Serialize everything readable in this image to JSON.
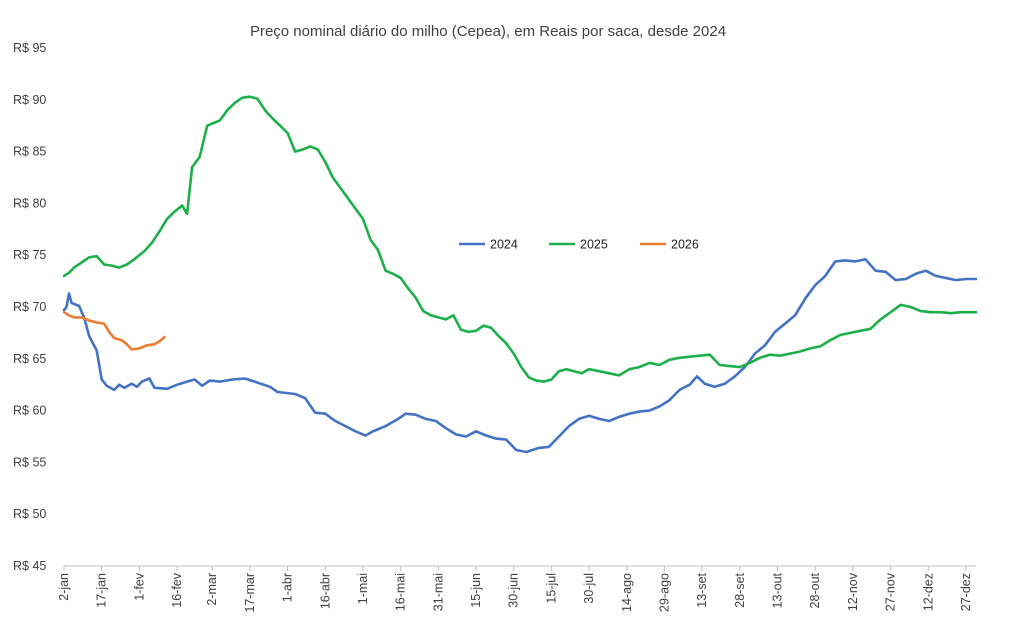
{
  "chart_data": {
    "type": "line",
    "title": "Preço nominal diário do milho (Cepea), em Reais por saca, desde 2024",
    "ylim": [
      45,
      95
    ],
    "y_ticks": [
      {
        "value": 95,
        "label": "R$ 95"
      },
      {
        "value": 90,
        "label": "R$ 90"
      },
      {
        "value": 85,
        "label": "R$ 85"
      },
      {
        "value": 80,
        "label": "R$ 80"
      },
      {
        "value": 75,
        "label": "R$ 75"
      },
      {
        "value": 70,
        "label": "R$ 70"
      },
      {
        "value": 65,
        "label": "R$ 65"
      },
      {
        "value": 60,
        "label": "R$ 60"
      },
      {
        "value": 55,
        "label": "R$ 55"
      },
      {
        "value": 50,
        "label": "R$ 50"
      },
      {
        "value": 45,
        "label": "R$ 45"
      }
    ],
    "x_ticks": [
      "2-jan",
      "17-jan",
      "1-fev",
      "16-fev",
      "2-mar",
      "17-mar",
      "1-abr",
      "16-abr",
      "1-mai",
      "16-mai",
      "31-mai",
      "15-jun",
      "30-jun",
      "15-jul",
      "30-jul",
      "14-ago",
      "29-ago",
      "13-set",
      "28-set",
      "13-out",
      "28-out",
      "12-nov",
      "27-nov",
      "12-dez",
      "27-dez"
    ],
    "legend_position": "center-right",
    "grid": false,
    "series": [
      {
        "name": "2024",
        "color": "#4472C4",
        "points": [
          [
            "2-jan",
            69.7
          ],
          [
            "3-jan",
            70.0
          ],
          [
            "4-jan",
            71.3
          ],
          [
            "5-jan",
            70.4
          ],
          [
            "8-jan",
            70.1
          ],
          [
            "10-jan",
            69.0
          ],
          [
            "12-jan",
            67.2
          ],
          [
            "15-jan",
            65.8
          ],
          [
            "17-jan",
            63.0
          ],
          [
            "19-jan",
            62.4
          ],
          [
            "22-jan",
            62.0
          ],
          [
            "24-jan",
            62.5
          ],
          [
            "26-jan",
            62.2
          ],
          [
            "29-jan",
            62.6
          ],
          [
            "31-jan",
            62.3
          ],
          [
            "2-fev",
            62.8
          ],
          [
            "5-fev",
            63.1
          ],
          [
            "7-fev",
            62.2
          ],
          [
            "12-fev",
            62.1
          ],
          [
            "16-fev",
            62.5
          ],
          [
            "20-fev",
            62.8
          ],
          [
            "23-fev",
            63.0
          ],
          [
            "26-fev",
            62.4
          ],
          [
            "29-fev",
            62.9
          ],
          [
            "5-mar",
            62.8
          ],
          [
            "10-mar",
            63.0
          ],
          [
            "15-mar",
            63.1
          ],
          [
            "20-mar",
            62.7
          ],
          [
            "25-mar",
            62.3
          ],
          [
            "28-mar",
            61.8
          ],
          [
            "4-abr",
            61.6
          ],
          [
            "8-abr",
            61.2
          ],
          [
            "12-abr",
            59.8
          ],
          [
            "16-abr",
            59.7
          ],
          [
            "20-abr",
            59.0
          ],
          [
            "24-abr",
            58.5
          ],
          [
            "28-abr",
            58.0
          ],
          [
            "2-mai",
            57.6
          ],
          [
            "5-mai",
            58.0
          ],
          [
            "10-mai",
            58.5
          ],
          [
            "15-mai",
            59.2
          ],
          [
            "18-mai",
            59.7
          ],
          [
            "22-mai",
            59.6
          ],
          [
            "26-mai",
            59.2
          ],
          [
            "30-mai",
            59.0
          ],
          [
            "3-jun",
            58.3
          ],
          [
            "7-jun",
            57.7
          ],
          [
            "11-jun",
            57.5
          ],
          [
            "15-jun",
            58.0
          ],
          [
            "19-jun",
            57.6
          ],
          [
            "23-jun",
            57.3
          ],
          [
            "27-jun",
            57.2
          ],
          [
            "1-jul",
            56.2
          ],
          [
            "5-jul",
            56.0
          ],
          [
            "10-jul",
            56.4
          ],
          [
            "14-jul",
            56.5
          ],
          [
            "18-jul",
            57.5
          ],
          [
            "22-jul",
            58.5
          ],
          [
            "26-jul",
            59.2
          ],
          [
            "30-jul",
            59.5
          ],
          [
            "3-ago",
            59.2
          ],
          [
            "7-ago",
            59.0
          ],
          [
            "11-ago",
            59.4
          ],
          [
            "15-ago",
            59.7
          ],
          [
            "19-ago",
            59.9
          ],
          [
            "23-ago",
            60.0
          ],
          [
            "27-ago",
            60.4
          ],
          [
            "31-ago",
            61.0
          ],
          [
            "4-set",
            62.0
          ],
          [
            "8-set",
            62.5
          ],
          [
            "11-set",
            63.3
          ],
          [
            "14-set",
            62.6
          ],
          [
            "18-set",
            62.3
          ],
          [
            "22-set",
            62.6
          ],
          [
            "26-set",
            63.3
          ],
          [
            "30-set",
            64.2
          ],
          [
            "4-out",
            65.5
          ],
          [
            "8-out",
            66.3
          ],
          [
            "12-out",
            67.6
          ],
          [
            "16-out",
            68.4
          ],
          [
            "20-out",
            69.2
          ],
          [
            "24-out",
            70.8
          ],
          [
            "28-out",
            72.1
          ],
          [
            "1-nov",
            73.0
          ],
          [
            "5-nov",
            74.4
          ],
          [
            "9-nov",
            74.5
          ],
          [
            "13-nov",
            74.4
          ],
          [
            "17-nov",
            74.6
          ],
          [
            "21-nov",
            73.5
          ],
          [
            "25-nov",
            73.4
          ],
          [
            "29-nov",
            72.6
          ],
          [
            "3-dez",
            72.7
          ],
          [
            "7-dez",
            73.2
          ],
          [
            "11-dez",
            73.5
          ],
          [
            "15-dez",
            73.0
          ],
          [
            "19-dez",
            72.8
          ],
          [
            "23-dez",
            72.6
          ],
          [
            "27-dez",
            72.7
          ],
          [
            "31-dez",
            72.7
          ]
        ]
      },
      {
        "name": "2025",
        "color": "#1DB04A",
        "points": [
          [
            "2-jan",
            73.0
          ],
          [
            "4-jan",
            73.3
          ],
          [
            "6-jan",
            73.8
          ],
          [
            "9-jan",
            74.3
          ],
          [
            "12-jan",
            74.8
          ],
          [
            "15-jan",
            74.9
          ],
          [
            "18-jan",
            74.1
          ],
          [
            "21-jan",
            74.0
          ],
          [
            "24-jan",
            73.8
          ],
          [
            "27-jan",
            74.1
          ],
          [
            "30-jan",
            74.6
          ],
          [
            "3-fev",
            75.4
          ],
          [
            "6-fev",
            76.2
          ],
          [
            "9-fev",
            77.3
          ],
          [
            "12-fev",
            78.5
          ],
          [
            "15-fev",
            79.2
          ],
          [
            "18-fev",
            79.8
          ],
          [
            "20-fev",
            79.0
          ],
          [
            "22-fev",
            83.5
          ],
          [
            "25-fev",
            84.5
          ],
          [
            "28-fev",
            87.5
          ],
          [
            "2-mar",
            87.7
          ],
          [
            "5-mar",
            88.0
          ],
          [
            "8-mar",
            89.0
          ],
          [
            "11-mar",
            89.7
          ],
          [
            "14-mar",
            90.2
          ],
          [
            "17-mar",
            90.3
          ],
          [
            "20-mar",
            90.1
          ],
          [
            "23-mar",
            89.0
          ],
          [
            "26-mar",
            88.2
          ],
          [
            "29-mar",
            87.5
          ],
          [
            "1-abr",
            86.8
          ],
          [
            "4-abr",
            85.0
          ],
          [
            "7-abr",
            85.2
          ],
          [
            "10-abr",
            85.5
          ],
          [
            "13-abr",
            85.2
          ],
          [
            "16-abr",
            84.0
          ],
          [
            "19-abr",
            82.5
          ],
          [
            "22-abr",
            81.5
          ],
          [
            "25-abr",
            80.5
          ],
          [
            "28-abr",
            79.5
          ],
          [
            "1-mai",
            78.5
          ],
          [
            "4-mai",
            76.5
          ],
          [
            "7-mai",
            75.5
          ],
          [
            "10-mai",
            73.5
          ],
          [
            "13-mai",
            73.2
          ],
          [
            "16-mai",
            72.8
          ],
          [
            "19-mai",
            71.8
          ],
          [
            "22-mai",
            70.9
          ],
          [
            "25-mai",
            69.6
          ],
          [
            "28-mai",
            69.2
          ],
          [
            "31-mai",
            69.0
          ],
          [
            "3-jun",
            68.8
          ],
          [
            "6-jun",
            69.2
          ],
          [
            "9-jun",
            67.8
          ],
          [
            "12-jun",
            67.6
          ],
          [
            "15-jun",
            67.7
          ],
          [
            "18-jun",
            68.2
          ],
          [
            "21-jun",
            68.0
          ],
          [
            "24-jun",
            67.2
          ],
          [
            "27-jun",
            66.5
          ],
          [
            "30-jun",
            65.5
          ],
          [
            "3-jul",
            64.2
          ],
          [
            "6-jul",
            63.2
          ],
          [
            "9-jul",
            62.9
          ],
          [
            "12-jul",
            62.8
          ],
          [
            "15-jul",
            63.0
          ],
          [
            "18-jul",
            63.8
          ],
          [
            "21-jul",
            64.0
          ],
          [
            "24-jul",
            63.8
          ],
          [
            "27-jul",
            63.6
          ],
          [
            "30-jul",
            64.0
          ],
          [
            "3-ago",
            63.8
          ],
          [
            "7-ago",
            63.6
          ],
          [
            "11-ago",
            63.4
          ],
          [
            "15-ago",
            64.0
          ],
          [
            "19-ago",
            64.2
          ],
          [
            "23-ago",
            64.6
          ],
          [
            "27-ago",
            64.4
          ],
          [
            "31-ago",
            64.9
          ],
          [
            "4-set",
            65.1
          ],
          [
            "8-set",
            65.2
          ],
          [
            "12-set",
            65.3
          ],
          [
            "16-set",
            65.4
          ],
          [
            "20-set",
            64.4
          ],
          [
            "24-set",
            64.3
          ],
          [
            "28-set",
            64.2
          ],
          [
            "2-out",
            64.6
          ],
          [
            "6-out",
            65.1
          ],
          [
            "10-out",
            65.4
          ],
          [
            "14-out",
            65.3
          ],
          [
            "18-out",
            65.5
          ],
          [
            "22-out",
            65.7
          ],
          [
            "26-out",
            66.0
          ],
          [
            "30-out",
            66.2
          ],
          [
            "3-nov",
            66.8
          ],
          [
            "7-nov",
            67.3
          ],
          [
            "11-nov",
            67.5
          ],
          [
            "15-nov",
            67.7
          ],
          [
            "19-nov",
            67.9
          ],
          [
            "23-nov",
            68.8
          ],
          [
            "27-nov",
            69.5
          ],
          [
            "1-dez",
            70.2
          ],
          [
            "5-dez",
            70.0
          ],
          [
            "9-dez",
            69.6
          ],
          [
            "13-dez",
            69.5
          ],
          [
            "17-dez",
            69.5
          ],
          [
            "21-dez",
            69.4
          ],
          [
            "25-dez",
            69.5
          ],
          [
            "31-dez",
            69.5
          ]
        ]
      },
      {
        "name": "2026",
        "color": "#ED7D31",
        "points": [
          [
            "2-jan",
            69.5
          ],
          [
            "4-jan",
            69.2
          ],
          [
            "6-jan",
            69.0
          ],
          [
            "9-jan",
            69.0
          ],
          [
            "12-jan",
            68.7
          ],
          [
            "15-jan",
            68.5
          ],
          [
            "18-jan",
            68.4
          ],
          [
            "20-jan",
            67.6
          ],
          [
            "22-jan",
            67.0
          ],
          [
            "25-jan",
            66.8
          ],
          [
            "27-jan",
            66.4
          ],
          [
            "29-jan",
            65.9
          ],
          [
            "1-fev",
            66.0
          ],
          [
            "4-fev",
            66.3
          ],
          [
            "7-fev",
            66.4
          ],
          [
            "9-fev",
            66.7
          ],
          [
            "11-fev",
            67.1
          ]
        ]
      }
    ]
  }
}
